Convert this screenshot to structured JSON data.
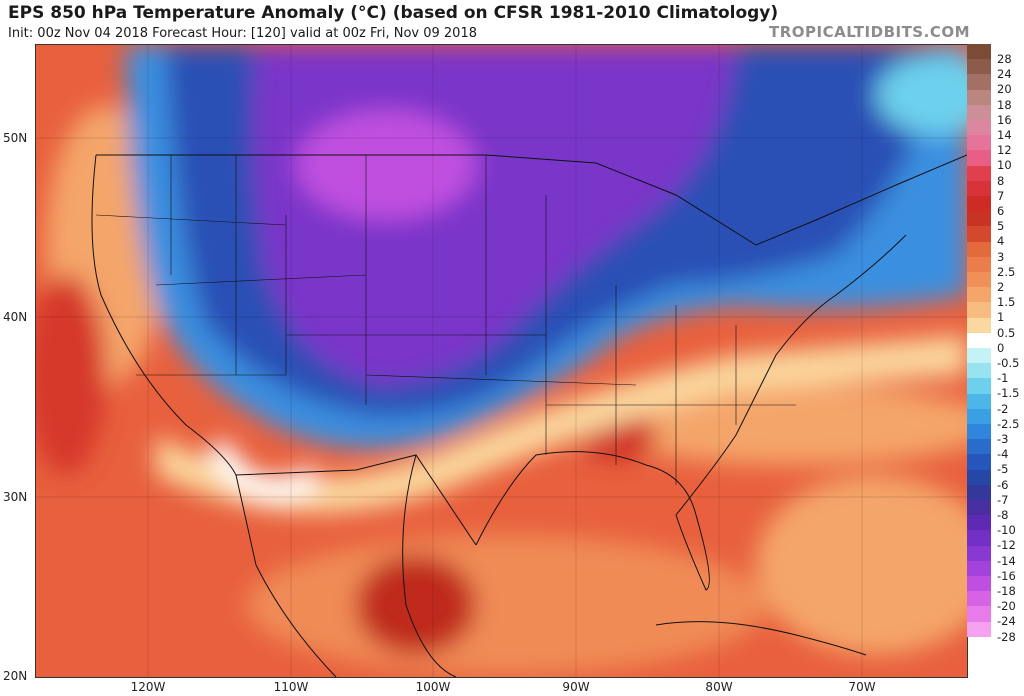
{
  "header": {
    "title": "EPS 850 hPa Temperature Anomaly (°C) (based on CFSR 1981-2010 Climatology)",
    "subtitle": "Init: 00z Nov 04 2018   Forecast Hour: [120]   valid at 00z Fri, Nov 09 2018",
    "brand": "TROPICALTIDBITS.COM"
  },
  "map": {
    "lat_labels": [
      "50N",
      "40N",
      "30N",
      "20N"
    ],
    "lon_labels": [
      "120W",
      "110W",
      "100W",
      "90W",
      "80W",
      "70W"
    ]
  },
  "colorbar": {
    "labels": [
      "28",
      "24",
      "20",
      "18",
      "16",
      "14",
      "12",
      "10",
      "8",
      "7",
      "6",
      "5",
      "4",
      "3",
      "2.5",
      "2",
      "1.5",
      "1",
      "0.5",
      "0",
      "-0.5",
      "-1",
      "-1.5",
      "-2",
      "-2.5",
      "-3",
      "-4",
      "-5",
      "-6",
      "-7",
      "-8",
      "-10",
      "-12",
      "-14",
      "-16",
      "-18",
      "-20",
      "-24",
      "-28"
    ],
    "colors": [
      "#7a4c35",
      "#8b5c4a",
      "#a27064",
      "#b98680",
      "#cc8f97",
      "#dc86a0",
      "#e6739a",
      "#e85e85",
      "#e0404e",
      "#d7333a",
      "#cf2b26",
      "#c83323",
      "#d4492d",
      "#e26a3d",
      "#ea7d4b",
      "#f08f57",
      "#f4a56a",
      "#f7bc80",
      "#fbd89f",
      "#ffffff",
      "#c5f2f6",
      "#98e3f0",
      "#6dd0ec",
      "#4cb6e8",
      "#3b9fe3",
      "#2f86db",
      "#2a6ccc",
      "#2556bb",
      "#2747a7",
      "#35389b",
      "#4a2fa1",
      "#5e2ab3",
      "#7230c4",
      "#8a38d3",
      "#a442dc",
      "#bf4fe1",
      "#d862e6",
      "#e87bea",
      "#f4a2ef"
    ]
  }
}
